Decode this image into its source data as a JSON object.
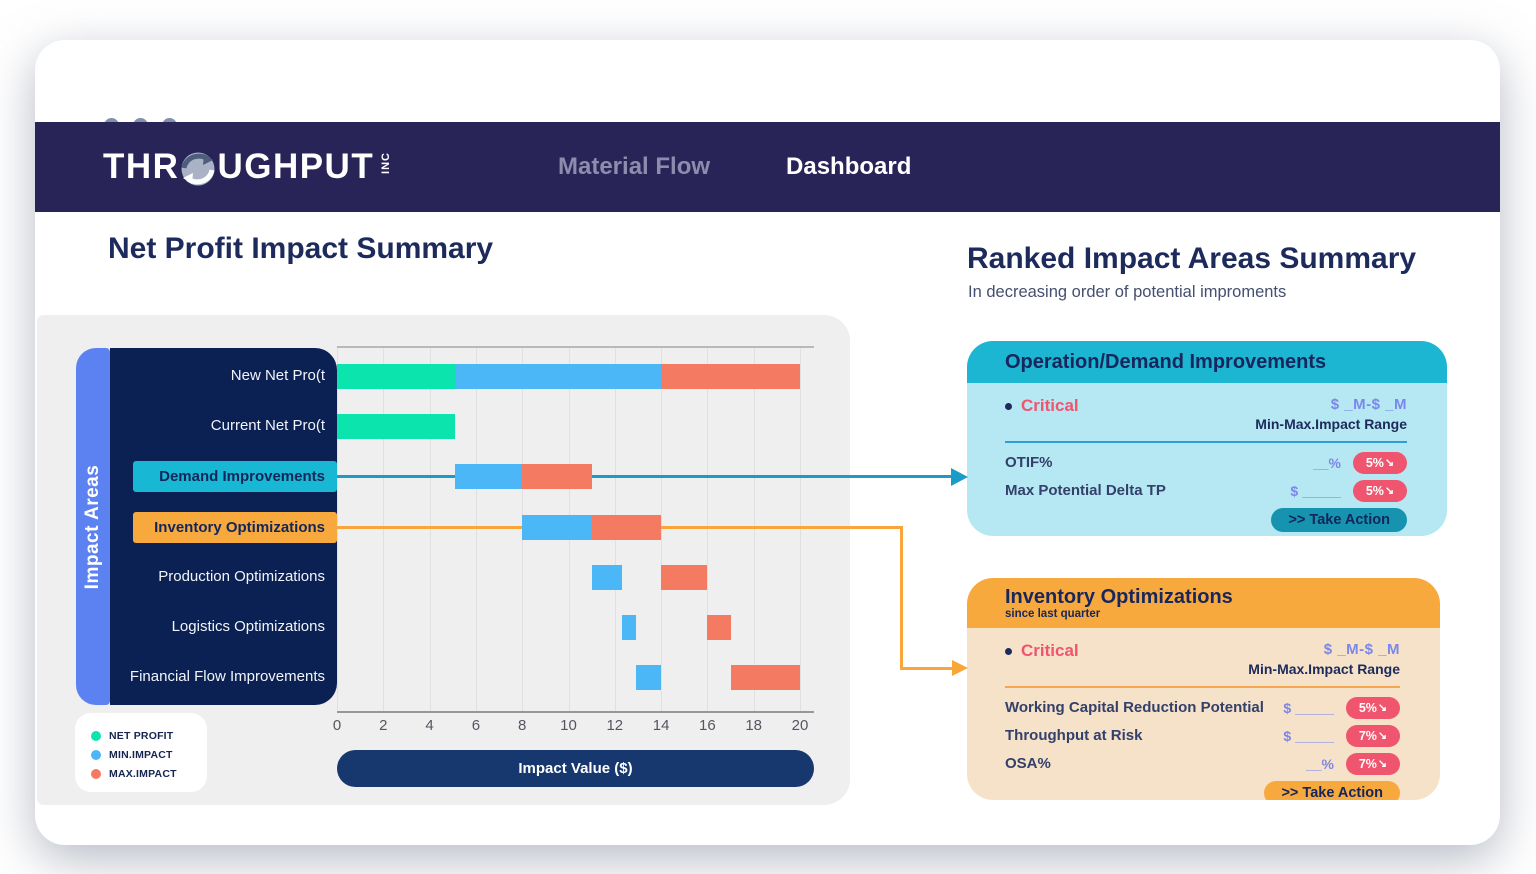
{
  "navbar": {
    "logo": {
      "pre": "THR",
      "post": "UGHPUT",
      "suffix": "INC"
    },
    "items": [
      {
        "label": "Material Flow",
        "active": false
      },
      {
        "label": "Dashboard",
        "active": true
      }
    ]
  },
  "left_section": {
    "title": "Net Profit Impact Summary"
  },
  "chart_data": {
    "type": "bar",
    "orientation": "horizontal",
    "title": "Net Profit Impact Summary",
    "xlabel": "Impact Value ($)",
    "ylabel": "Impact Areas",
    "xlim": [
      0,
      20
    ],
    "x_ticks": [
      "0",
      "2",
      "4",
      "6",
      "8",
      "10",
      "12",
      "14",
      "16",
      "18",
      "20"
    ],
    "grid": true,
    "categories": [
      "New Net Pro(t",
      "Current Net Pro(t",
      "Demand Improvements",
      "Inventory Optimizations",
      "Production Optimizations",
      "Logistics Optimizations",
      "Financial Flow Improvements"
    ],
    "series": [
      {
        "name": "NET PROFIT",
        "color": "#0be5ad",
        "ranges": [
          [
            0,
            5.1
          ],
          [
            0,
            5.1
          ],
          null,
          null,
          null,
          null,
          null
        ]
      },
      {
        "name": "MIN.IMPACT",
        "color": "#4cb7f7",
        "ranges": [
          [
            5.1,
            14
          ],
          null,
          [
            5.1,
            8
          ],
          [
            8,
            11
          ],
          [
            11,
            12.3
          ],
          [
            12.3,
            12.9
          ],
          [
            12.9,
            14
          ]
        ]
      },
      {
        "name": "MAX.IMPACT",
        "color": "#f57a62",
        "ranges": [
          [
            14,
            20
          ],
          null,
          [
            8,
            11
          ],
          [
            11,
            14
          ],
          [
            14,
            16
          ],
          [
            16,
            17
          ],
          [
            17,
            20
          ]
        ]
      }
    ],
    "highlighted_rows": [
      {
        "label": "Demand Improvements",
        "color": "#18b7d3",
        "text_color": "#12265a"
      },
      {
        "label": "Inventory Optimizations",
        "color": "#f8a93e",
        "text_color": "#12265a"
      }
    ],
    "legend": [
      {
        "label": "NET PROFIT",
        "color": "#0be5ad"
      },
      {
        "label": "MIN.IMPACT",
        "color": "#4cb7f7"
      },
      {
        "label": "MAX.IMPACT",
        "color": "#f57a62"
      }
    ],
    "legend_position": "bottom-left"
  },
  "right_section": {
    "title": "Ranked Impact Areas Summary",
    "subtitle": "In decreasing order of  potential improments",
    "cards": [
      {
        "title": "Operation/Demand Improvements",
        "subtitle": "",
        "status": "Critical",
        "range_value": "$ _M-$ _M",
        "range_label": "Min-Max.Impact Range",
        "metrics": [
          {
            "label": "OTIF%",
            "value": "__%",
            "badge": "5%"
          },
          {
            "label": "Max Potential Delta TP",
            "value": "$ _____",
            "badge": "5%"
          }
        ],
        "action_label": ">> Take Action",
        "theme": {
          "header": "#1cb5d2",
          "body": "#b5e8f2",
          "button": "#1593af",
          "divider": "#2f9fd6",
          "arrow": "#1b9cc8"
        }
      },
      {
        "title": "Inventory Optimizations",
        "subtitle": "since last quarter",
        "status": "Critical",
        "range_value": "$ _M-$ _M",
        "range_label": "Min-Max.Impact Range",
        "metrics": [
          {
            "label": "Working Capital Reduction Potential",
            "value": "$ _____",
            "badge": "5%"
          },
          {
            "label": "Throughput at Risk",
            "value": "$ _____",
            "badge": "7%"
          },
          {
            "label": "OSA%",
            "value": "__%",
            "badge": "7%"
          }
        ],
        "action_label": ">> Take Action",
        "theme": {
          "header": "#f8a93e",
          "body": "#f6e2c9",
          "button": "#f8a93e",
          "divider": "#f5a64e",
          "arrow": "#f9a53a"
        }
      }
    ]
  },
  "icons": {
    "trend-down": "↘"
  },
  "colors": {
    "navbar": "#292457",
    "label_panel": "#0b2153",
    "rail": "#5c82f2",
    "axis_pill": "#16386e",
    "badge_pink": "#f0556f",
    "critical_pink": "#f0546f",
    "placeholder_blue": "#7b87e9",
    "heading_navy": "#1d2a5c"
  }
}
